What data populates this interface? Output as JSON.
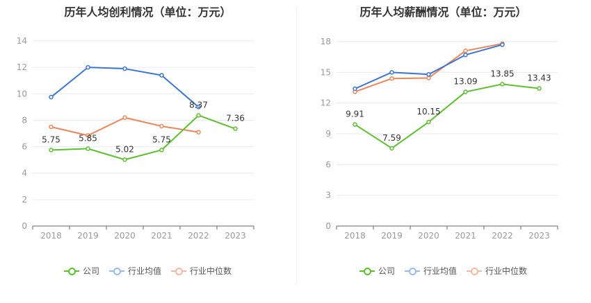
{
  "chart_data": [
    {
      "type": "line",
      "title": "历年人均创利情况（单位：万元）",
      "categories": [
        "2018",
        "2019",
        "2020",
        "2021",
        "2022",
        "2023"
      ],
      "ylim": [
        0,
        14
      ],
      "yticks": [
        "0",
        "2",
        "4",
        "6",
        "8",
        "10",
        "12",
        "14"
      ],
      "series": [
        {
          "name": "公司",
          "color": "#5cc02d",
          "values": [
            5.75,
            5.85,
            5.02,
            5.75,
            8.37,
            7.36
          ],
          "labels": [
            "5.75",
            "5.85",
            "5.02",
            "5.75",
            "8.37",
            "7.36"
          ]
        },
        {
          "name": "行业均值",
          "color": "#3a75d6",
          "values": [
            9.75,
            12.0,
            11.9,
            11.4,
            9.0,
            null
          ]
        },
        {
          "name": "行业中位数",
          "color": "#ee8558",
          "values": [
            7.5,
            6.85,
            8.2,
            7.55,
            7.1,
            null
          ]
        }
      ],
      "grid": true,
      "legend": "bottom"
    },
    {
      "type": "line",
      "title": "历年人均薪酬情况（单位：万元）",
      "categories": [
        "2018",
        "2019",
        "2020",
        "2021",
        "2022",
        "2023"
      ],
      "ylim": [
        0,
        18
      ],
      "yticks": [
        "0",
        "3",
        "6",
        "9",
        "12",
        "15",
        "18"
      ],
      "series": [
        {
          "name": "公司",
          "color": "#5cc02d",
          "values": [
            9.91,
            7.59,
            10.15,
            13.09,
            13.85,
            13.43
          ],
          "labels": [
            "9.91",
            "7.59",
            "10.15",
            "13.09",
            "13.85",
            "13.43"
          ]
        },
        {
          "name": "行业均值",
          "color": "#3a75d6",
          "values": [
            13.4,
            15.0,
            14.8,
            16.7,
            17.7,
            null
          ]
        },
        {
          "name": "行业中位数",
          "color": "#ee8558",
          "values": [
            13.1,
            14.4,
            14.45,
            17.1,
            17.8,
            null
          ]
        }
      ],
      "grid": true,
      "legend": "bottom"
    }
  ],
  "legend": [
    {
      "label": "公司",
      "color": "#5cc02d",
      "fill": "#ffffff"
    },
    {
      "label": "行业均值",
      "color": "#9bbbed",
      "fill": "#ffffff"
    },
    {
      "label": "行业中位数",
      "color": "#f4b9a0",
      "fill": "#ffffff"
    }
  ]
}
